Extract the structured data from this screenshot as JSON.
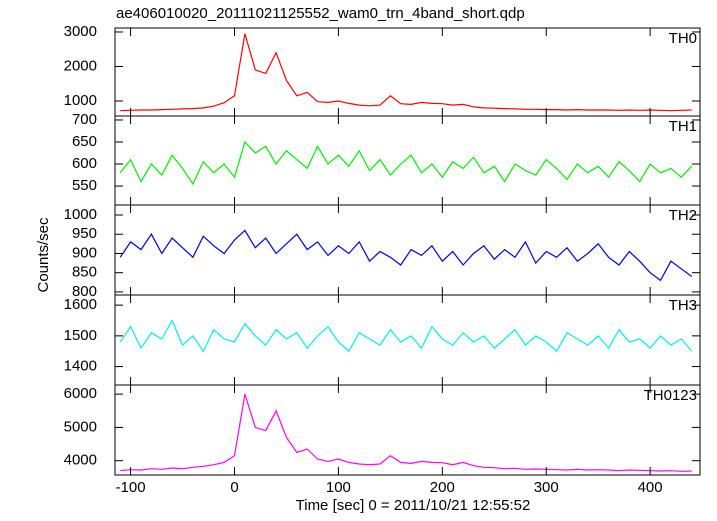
{
  "title": "ae406010020_20111021125552_wam0_trn_4band_short.qdp",
  "ylabel": "Counts/sec",
  "xlabel": "Time [sec] 0 = 2011/10/21 12:55:52",
  "chart_data": [
    {
      "type": "line",
      "label": "TH0",
      "color": "#ff0000",
      "x": [
        -110,
        -100,
        -90,
        -80,
        -70,
        -60,
        -50,
        -40,
        -30,
        -20,
        -10,
        0,
        10,
        20,
        30,
        40,
        50,
        60,
        70,
        80,
        90,
        100,
        110,
        120,
        130,
        140,
        150,
        160,
        170,
        180,
        190,
        200,
        210,
        220,
        230,
        240,
        250,
        260,
        270,
        280,
        290,
        300,
        310,
        320,
        330,
        340,
        350,
        360,
        370,
        380,
        390,
        400,
        410,
        420,
        430,
        440
      ],
      "values": [
        720,
        730,
        740,
        740,
        750,
        760,
        770,
        780,
        800,
        850,
        950,
        1150,
        2950,
        1900,
        1800,
        2400,
        1600,
        1150,
        1250,
        980,
        960,
        1000,
        930,
        880,
        860,
        880,
        1150,
        920,
        900,
        960,
        930,
        920,
        880,
        900,
        830,
        800,
        790,
        780,
        770,
        760,
        760,
        750,
        750,
        740,
        750,
        740,
        740,
        740,
        730,
        740,
        730,
        740,
        730,
        720,
        730,
        740
      ],
      "xlim": [
        -115,
        448
      ],
      "xticks": [
        -100,
        0,
        100,
        200,
        300,
        400
      ],
      "ylim": [
        565,
        3115
      ],
      "yticks": [
        1000,
        2000,
        3000
      ]
    },
    {
      "type": "line",
      "label": "TH1",
      "color": "#00ee00",
      "x": [
        -110,
        -100,
        -90,
        -80,
        -70,
        -60,
        -50,
        -40,
        -30,
        -20,
        -10,
        0,
        10,
        20,
        30,
        40,
        50,
        60,
        70,
        80,
        90,
        100,
        110,
        120,
        130,
        140,
        150,
        160,
        170,
        180,
        190,
        200,
        210,
        220,
        230,
        240,
        250,
        260,
        270,
        280,
        290,
        300,
        310,
        320,
        330,
        340,
        350,
        360,
        370,
        380,
        390,
        400,
        410,
        420,
        430,
        440
      ],
      "values": [
        580,
        610,
        560,
        600,
        575,
        620,
        590,
        555,
        605,
        580,
        600,
        570,
        650,
        625,
        640,
        600,
        630,
        610,
        590,
        640,
        600,
        620,
        595,
        630,
        585,
        610,
        575,
        600,
        620,
        580,
        600,
        570,
        605,
        590,
        615,
        580,
        595,
        560,
        600,
        585,
        575,
        610,
        590,
        565,
        600,
        580,
        595,
        570,
        605,
        585,
        560,
        600,
        580,
        590,
        570,
        595
      ],
      "xlim": [
        -115,
        448
      ],
      "xticks": [
        -100,
        0,
        100,
        200,
        300,
        400
      ],
      "ylim": [
        507,
        709
      ],
      "yticks": [
        550,
        600,
        650,
        700
      ]
    },
    {
      "type": "line",
      "label": "TH2",
      "color": "#0000dd",
      "x": [
        -110,
        -100,
        -90,
        -80,
        -70,
        -60,
        -50,
        -40,
        -30,
        -20,
        -10,
        0,
        10,
        20,
        30,
        40,
        50,
        60,
        70,
        80,
        90,
        100,
        110,
        120,
        130,
        140,
        150,
        160,
        170,
        180,
        190,
        200,
        210,
        220,
        230,
        240,
        250,
        260,
        270,
        280,
        290,
        300,
        310,
        320,
        330,
        340,
        350,
        360,
        370,
        380,
        390,
        400,
        410,
        420,
        430,
        440
      ],
      "values": [
        890,
        930,
        910,
        950,
        900,
        940,
        915,
        890,
        945,
        920,
        900,
        935,
        960,
        915,
        940,
        900,
        925,
        950,
        910,
        930,
        895,
        920,
        900,
        930,
        880,
        905,
        890,
        870,
        910,
        895,
        920,
        880,
        905,
        870,
        900,
        920,
        885,
        910,
        890,
        930,
        875,
        905,
        890,
        915,
        880,
        900,
        925,
        890,
        870,
        905,
        880,
        850,
        830,
        880,
        860,
        840
      ],
      "xlim": [
        -115,
        448
      ],
      "xticks": [
        -100,
        0,
        100,
        200,
        300,
        400
      ],
      "ylim": [
        792,
        1026
      ],
      "yticks": [
        800,
        850,
        900,
        950,
        1000
      ]
    },
    {
      "type": "line",
      "label": "TH3",
      "color": "#00eeee",
      "x": [
        -110,
        -100,
        -90,
        -80,
        -70,
        -60,
        -50,
        -40,
        -30,
        -20,
        -10,
        0,
        10,
        20,
        30,
        40,
        50,
        60,
        70,
        80,
        90,
        100,
        110,
        120,
        130,
        140,
        150,
        160,
        170,
        180,
        190,
        200,
        210,
        220,
        230,
        240,
        250,
        260,
        270,
        280,
        290,
        300,
        310,
        320,
        330,
        340,
        350,
        360,
        370,
        380,
        390,
        400,
        410,
        420,
        430,
        440
      ],
      "values": [
        1480,
        1530,
        1460,
        1510,
        1490,
        1550,
        1470,
        1500,
        1450,
        1520,
        1490,
        1480,
        1540,
        1500,
        1470,
        1520,
        1490,
        1510,
        1460,
        1500,
        1530,
        1480,
        1450,
        1510,
        1490,
        1470,
        1520,
        1480,
        1500,
        1460,
        1530,
        1490,
        1470,
        1510,
        1480,
        1500,
        1460,
        1490,
        1520,
        1470,
        1500,
        1480,
        1450,
        1510,
        1490,
        1470,
        1500,
        1460,
        1520,
        1480,
        1490,
        1460,
        1500,
        1470,
        1490,
        1450
      ],
      "xlim": [
        -115,
        448
      ],
      "xticks": [
        -100,
        0,
        100,
        200,
        300,
        400
      ],
      "ylim": [
        1340,
        1633
      ],
      "yticks": [
        1400,
        1500,
        1600
      ]
    },
    {
      "type": "line",
      "label": "TH0123",
      "color": "#ff00ff",
      "x": [
        -110,
        -100,
        -90,
        -80,
        -70,
        -60,
        -50,
        -40,
        -30,
        -20,
        -10,
        0,
        10,
        20,
        30,
        40,
        50,
        60,
        70,
        80,
        90,
        100,
        110,
        120,
        130,
        140,
        150,
        160,
        170,
        180,
        190,
        200,
        210,
        220,
        230,
        240,
        250,
        260,
        270,
        280,
        290,
        300,
        310,
        320,
        330,
        340,
        350,
        360,
        370,
        380,
        390,
        400,
        410,
        420,
        430,
        440
      ],
      "values": [
        3700,
        3730,
        3720,
        3760,
        3740,
        3780,
        3760,
        3800,
        3830,
        3880,
        3950,
        4150,
        6000,
        5000,
        4900,
        5500,
        4700,
        4250,
        4350,
        4050,
        3980,
        4050,
        3950,
        3900,
        3880,
        3900,
        4150,
        3950,
        3920,
        3980,
        3950,
        3940,
        3880,
        3950,
        3850,
        3800,
        3790,
        3760,
        3770,
        3740,
        3750,
        3740,
        3730,
        3720,
        3740,
        3720,
        3730,
        3720,
        3700,
        3720,
        3710,
        3700,
        3690,
        3700,
        3680,
        3690
      ],
      "xlim": [
        -115,
        448
      ],
      "xticks": [
        -100,
        0,
        100,
        200,
        300,
        400
      ],
      "ylim": [
        3570,
        6275
      ],
      "yticks": [
        4000,
        5000,
        6000
      ]
    }
  ]
}
